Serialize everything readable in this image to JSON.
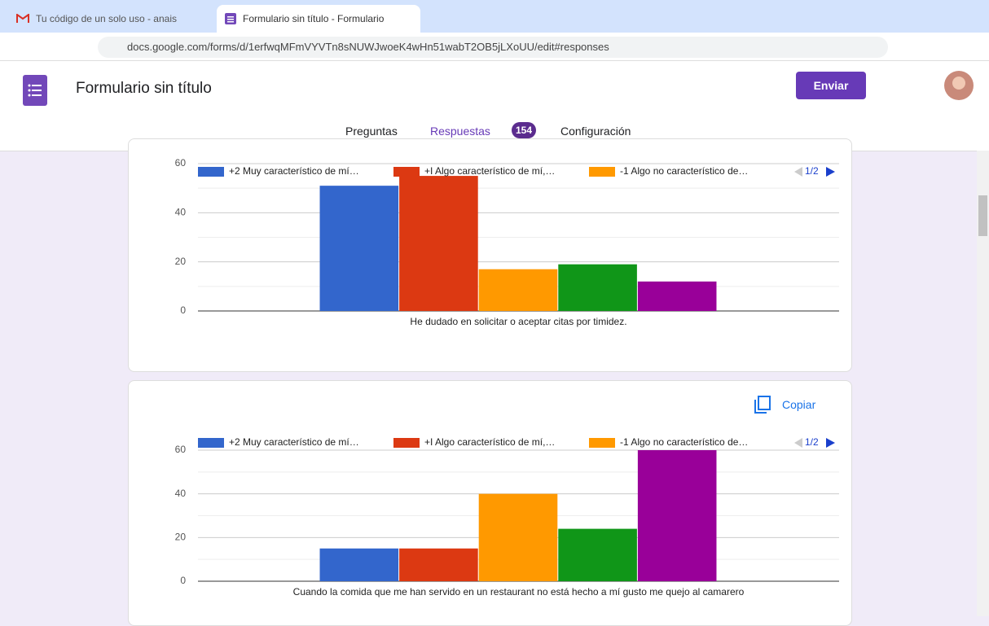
{
  "browser": {
    "tabs": [
      "Tu código de un solo uso - anais",
      "Formulario sin título - Formulario"
    ],
    "url": "docs.google.com/forms/d/1erfwqMFmVYVTn8sNUWJwoeK4wHn51wabT2OB5jLXoUU/edit#responses"
  },
  "header": {
    "title": "Formulario sin título",
    "send_button": "Enviar"
  },
  "nav": {
    "tabs": [
      "Preguntas",
      "Respuestas",
      "Configuración"
    ],
    "responses_count": 154
  },
  "copy_button": "Copiar",
  "chart_data": [
    {
      "type": "bar",
      "categories": [
        "He dudado en solicitar o aceptar citas por timidez."
      ],
      "series": [
        {
          "name": "+2 Muy característico de mí…",
          "color": "#3366cc",
          "values": [
            51
          ]
        },
        {
          "name": "+I Algo característico de mí,…",
          "color": "#dc3912",
          "values": [
            55
          ]
        },
        {
          "name": "-1 Algo no característico de…",
          "color": "#ff9900",
          "values": [
            17
          ]
        },
        {
          "name": null,
          "color": "#109618",
          "values": [
            19
          ]
        },
        {
          "name": null,
          "color": "#990099",
          "values": [
            12
          ]
        }
      ],
      "ylim": [
        0,
        60
      ],
      "yticks": [
        0,
        20,
        40,
        60
      ],
      "minor_yticks": [
        10,
        30,
        50
      ],
      "grid": true,
      "legend_page": "1/2"
    },
    {
      "type": "bar",
      "categories": [
        "Cuando la comida que me han servido en un restaurant no está hecho a mí gusto me quejo al camarero"
      ],
      "series": [
        {
          "name": "+2 Muy característico de mí…",
          "color": "#3366cc",
          "values": [
            15
          ]
        },
        {
          "name": "+I Algo característico de mí,…",
          "color": "#dc3912",
          "values": [
            15
          ]
        },
        {
          "name": "-1 Algo no característico de…",
          "color": "#ff9900",
          "values": [
            40
          ]
        },
        {
          "name": null,
          "color": "#109618",
          "values": [
            24
          ]
        },
        {
          "name": null,
          "color": "#990099",
          "values": [
            60
          ]
        }
      ],
      "ylim": [
        0,
        60
      ],
      "yticks": [
        0,
        20,
        40,
        60
      ],
      "minor_yticks": [
        10,
        30,
        50
      ],
      "grid": true,
      "legend_page": "1/2"
    }
  ]
}
